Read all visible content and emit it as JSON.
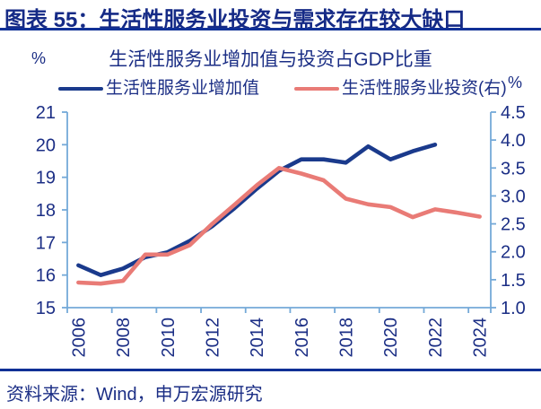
{
  "header": {
    "title": "图表 55：生活性服务业投资与需求存在较大缺口"
  },
  "source": "资料来源：Wind，申万宏源研究",
  "colors": {
    "navy_text": "#1b2e85",
    "header_navy": "#152a86",
    "rule_navy": "#103096",
    "line_blue": "#1a3a8c",
    "line_red": "#e97b76",
    "axis_light_blue": "#74a9d8"
  },
  "chart_data": {
    "type": "line",
    "title": "生活性服务业增加值与投资占GDP比重",
    "left_axis": {
      "unit": "%",
      "min": 15,
      "max": 21,
      "ticks": [
        "21",
        "20",
        "19",
        "18",
        "17",
        "16",
        "15"
      ]
    },
    "right_axis": {
      "unit": "%",
      "min": 1.0,
      "max": 4.5,
      "ticks": [
        "4.5",
        "4.0",
        "3.5",
        "3.0",
        "2.5",
        "2.0",
        "1.5",
        "1.0"
      ]
    },
    "categories": [
      2006,
      2007,
      2008,
      2009,
      2010,
      2011,
      2012,
      2013,
      2014,
      2015,
      2016,
      2017,
      2018,
      2019,
      2020,
      2021,
      2022,
      2023,
      2024
    ],
    "x_tick_years": [
      2006,
      2008,
      2010,
      2012,
      2014,
      2016,
      2018,
      2020,
      2022,
      2024
    ],
    "grid": false,
    "legend_position": "top",
    "series": [
      {
        "name": "生活性服务业增加值",
        "axis": "left",
        "color": "#1a3a8c",
        "years": [
          2006,
          2007,
          2008,
          2009,
          2010,
          2011,
          2012,
          2013,
          2014,
          2015,
          2016,
          2017,
          2018,
          2019,
          2020,
          2021,
          2022
        ],
        "values": [
          16.3,
          16.0,
          16.2,
          16.55,
          16.7,
          17.05,
          17.5,
          18.05,
          18.65,
          19.2,
          19.55,
          19.55,
          19.45,
          19.95,
          19.55,
          19.8,
          20.0
        ]
      },
      {
        "name": "生活性服务业投资(右)",
        "axis": "right",
        "color": "#e97b76",
        "years": [
          2006,
          2007,
          2008,
          2009,
          2010,
          2011,
          2012,
          2013,
          2014,
          2015,
          2016,
          2017,
          2018,
          2019,
          2020,
          2021,
          2022,
          2023,
          2024
        ],
        "values": [
          1.45,
          1.43,
          1.48,
          1.95,
          1.95,
          2.12,
          2.5,
          2.84,
          3.19,
          3.5,
          3.4,
          3.28,
          2.95,
          2.85,
          2.8,
          2.62,
          2.76,
          2.7,
          2.63
        ]
      }
    ]
  }
}
